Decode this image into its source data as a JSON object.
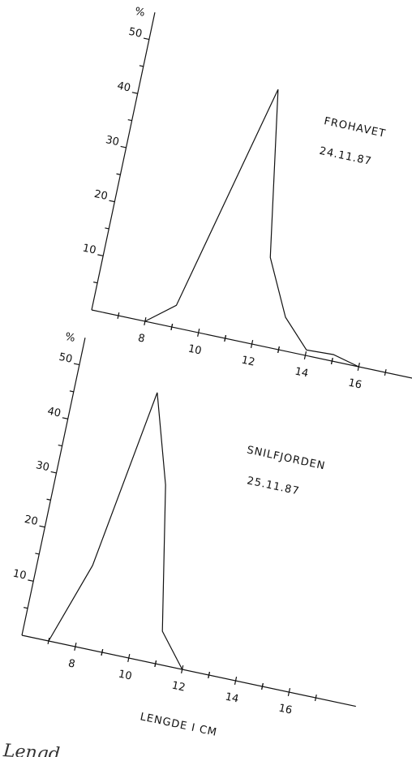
{
  "chart_data": [
    {
      "type": "line",
      "ylabel": "%",
      "annotations": [
        "FROHAVET",
        "24.11.87"
      ],
      "x": [
        8,
        9,
        11,
        12,
        13,
        14,
        15,
        16
      ],
      "values": [
        0,
        4,
        46,
        16,
        6,
        1,
        1.2,
        0
      ],
      "xlim": [
        6,
        18
      ],
      "ylim": [
        0,
        55
      ],
      "xticks": [
        8,
        10,
        12,
        14,
        16
      ],
      "yticks": [
        10,
        20,
        30,
        40,
        50
      ],
      "color": "#111111"
    },
    {
      "type": "line",
      "ylabel": "%",
      "annotations": [
        "SNILFJORDEN",
        "25.11.87"
      ],
      "xlabel": "LENGDE I CM",
      "x": [
        7,
        8,
        9,
        10,
        11,
        12
      ],
      "values": [
        0,
        15,
        48,
        32,
        6,
        0
      ],
      "xlim": [
        6,
        18.5
      ],
      "ylim": [
        0,
        55
      ],
      "xticks": [
        8,
        10,
        12,
        14,
        16
      ],
      "yticks": [
        10,
        20,
        30,
        40,
        50
      ],
      "color": "#111111"
    }
  ],
  "caption": "Lengd"
}
